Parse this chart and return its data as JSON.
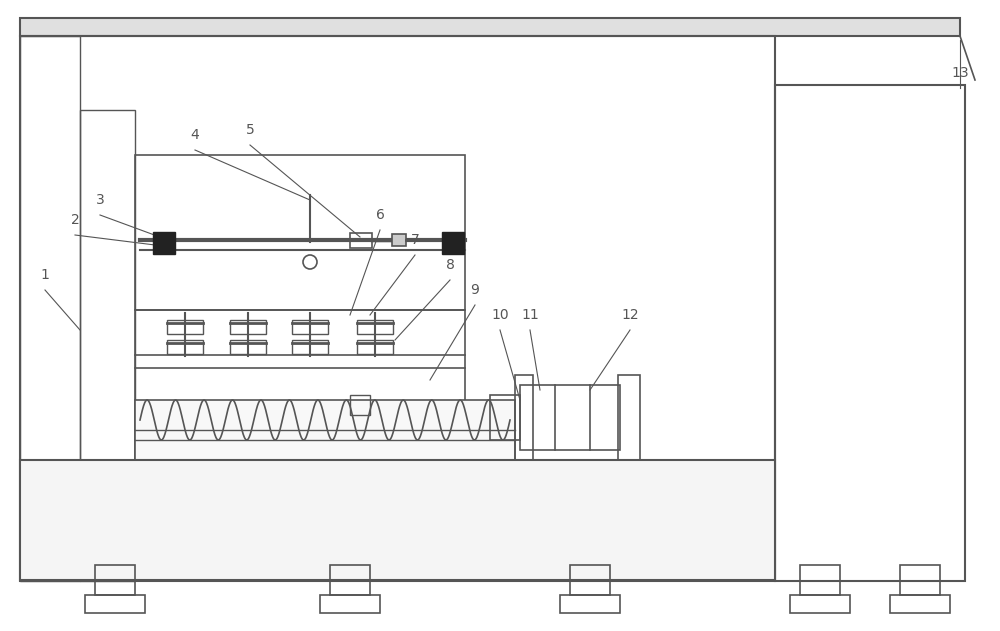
{
  "bg_color": "#ffffff",
  "line_color": "#555555",
  "fig_width": 10.0,
  "fig_height": 6.31,
  "dpi": 100
}
